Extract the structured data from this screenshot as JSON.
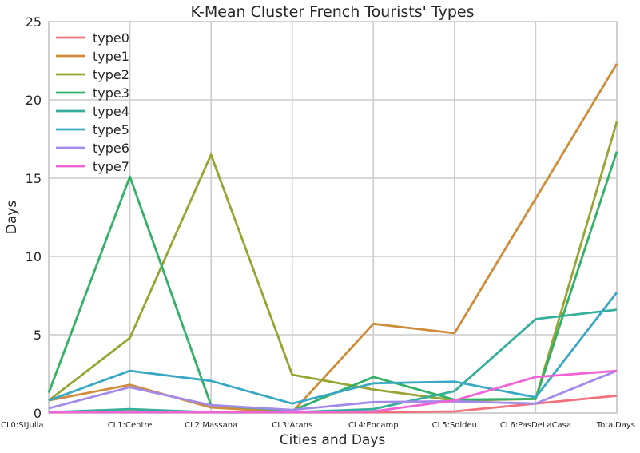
{
  "chart_data": {
    "type": "line",
    "title": "K-Mean Cluster French Tourists' Types",
    "xlabel": "Cities and Days",
    "ylabel": "Days",
    "ylim": [
      0,
      25
    ],
    "yticks": [
      0,
      5,
      10,
      15,
      20,
      25
    ],
    "grid": true,
    "legend_position": "top-left",
    "categories": [
      "CL0:StJulia",
      "CL1:Centre",
      "CL2:Massana",
      "CL3:Arans",
      "CL4:Encamp",
      "CL5:Soldeu",
      "CL6:PasDeLaCasa",
      "TotalDays"
    ],
    "series": [
      {
        "name": "type0",
        "color": "#f0717a",
        "values": [
          0.05,
          0.1,
          0.05,
          0.05,
          0.05,
          0.1,
          0.6,
          1.1
        ]
      },
      {
        "name": "type1",
        "color": "#cf8c3a",
        "values": [
          0.8,
          1.8,
          0.35,
          0.05,
          5.7,
          5.1,
          13.7,
          22.3
        ]
      },
      {
        "name": "type2",
        "color": "#97a431",
        "values": [
          0.8,
          4.8,
          16.5,
          2.45,
          1.5,
          0.8,
          0.9,
          18.6
        ]
      },
      {
        "name": "type3",
        "color": "#32b166",
        "values": [
          1.3,
          15.1,
          0.5,
          0.15,
          2.3,
          0.85,
          0.9,
          16.7
        ]
      },
      {
        "name": "type4",
        "color": "#35ae9a",
        "values": [
          0.05,
          0.25,
          0.05,
          0.05,
          0.25,
          1.4,
          6.0,
          6.6
        ]
      },
      {
        "name": "type5",
        "color": "#39a8c4",
        "values": [
          0.8,
          2.7,
          2.05,
          0.6,
          1.9,
          2.0,
          1.0,
          7.7
        ]
      },
      {
        "name": "type6",
        "color": "#a38ae9",
        "values": [
          0.3,
          1.65,
          0.5,
          0.2,
          0.7,
          0.75,
          0.6,
          2.7
        ]
      },
      {
        "name": "type7",
        "color": "#ef63d4",
        "values": [
          0.05,
          0.05,
          0.05,
          0.05,
          0.1,
          0.8,
          2.3,
          2.7
        ]
      }
    ]
  }
}
